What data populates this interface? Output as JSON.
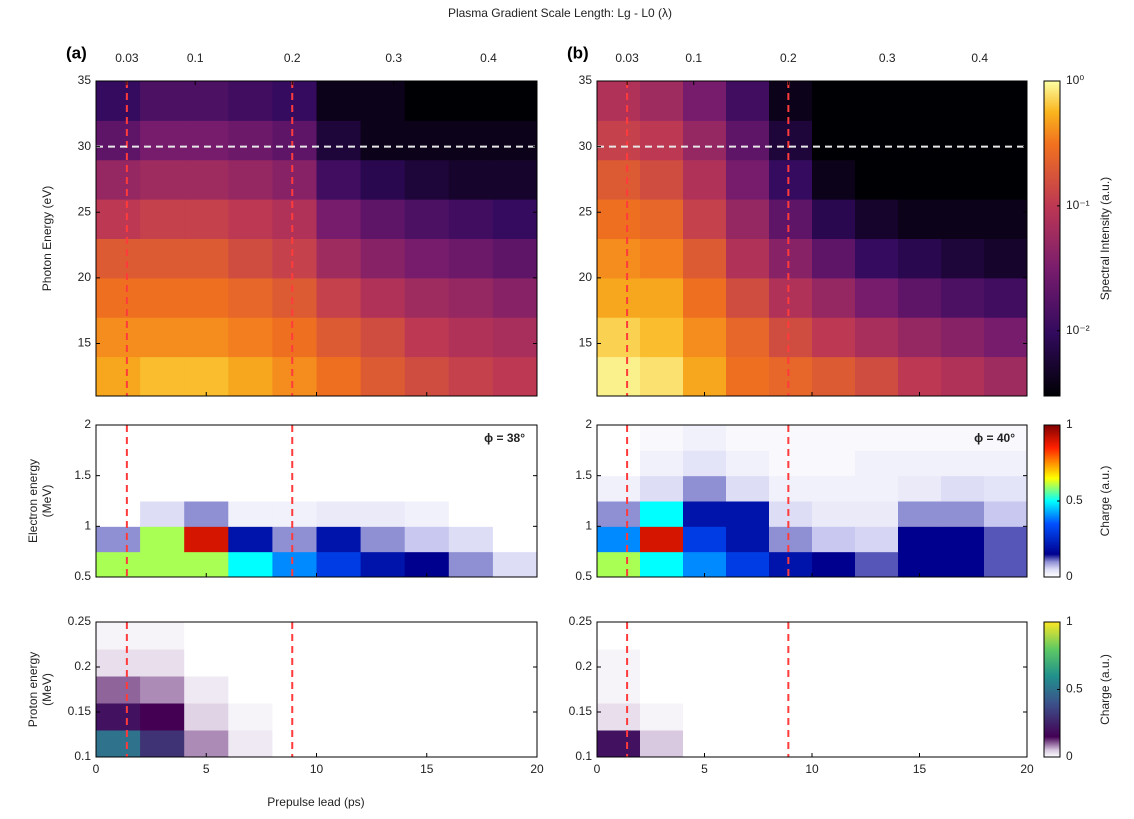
{
  "title": "Plasma Gradient Scale Length: Lg - L0 (λ)",
  "xlabel": "Prepulse lead (ps)",
  "chart_data": [
    {
      "type": "heatmap",
      "panel_label": "(a)",
      "ylabel": [
        "Photon Energy (eV)"
      ],
      "xbins": [
        0,
        2,
        4,
        6,
        8,
        10,
        12,
        14,
        16,
        18,
        20
      ],
      "ybins": [
        11,
        14,
        17,
        20,
        23,
        26,
        29,
        32,
        35
      ],
      "z": [
        [
          0.5,
          0.6,
          0.6,
          0.5,
          0.4,
          0.3,
          0.2,
          0.15,
          0.12,
          0.1
        ],
        [
          0.4,
          0.4,
          0.4,
          0.35,
          0.3,
          0.2,
          0.15,
          0.1,
          0.08,
          0.07
        ],
        [
          0.3,
          0.3,
          0.3,
          0.25,
          0.2,
          0.12,
          0.08,
          0.06,
          0.05,
          0.04
        ],
        [
          0.2,
          0.2,
          0.2,
          0.15,
          0.12,
          0.06,
          0.04,
          0.03,
          0.025,
          0.02
        ],
        [
          0.1,
          0.12,
          0.12,
          0.1,
          0.08,
          0.03,
          0.02,
          0.015,
          0.012,
          0.01
        ],
        [
          0.05,
          0.06,
          0.06,
          0.05,
          0.04,
          0.012,
          0.008,
          0.006,
          0.005,
          0.005
        ],
        [
          0.02,
          0.03,
          0.03,
          0.025,
          0.02,
          0.006,
          0.004,
          0.004,
          0.004,
          0.004
        ],
        [
          0.01,
          0.015,
          0.015,
          0.012,
          0.01,
          0.004,
          0.004,
          0.003,
          0.003,
          0.003
        ]
      ],
      "colormap": "inferno",
      "colorscale": "log",
      "clim": [
        0.003,
        1
      ],
      "xlim": [
        0,
        20
      ],
      "ylim": [
        11,
        35
      ],
      "xticks": [
        0,
        5,
        10,
        15,
        20
      ],
      "yticks": [
        15,
        20,
        25,
        30,
        35
      ],
      "x2ticks": [
        {
          "value": 1.4,
          "label": "0.03"
        },
        {
          "value": 4.5,
          "label": "0.1"
        },
        {
          "value": 8.9,
          "label": "0.2"
        },
        {
          "value": 13.5,
          "label": "0.3"
        },
        {
          "value": 17.8,
          "label": "0.4"
        }
      ],
      "vlines": [
        1.4,
        8.9
      ],
      "vline_color": "#ff3b3b",
      "hlines": [
        30
      ],
      "hline_color": "#e8e8e8"
    },
    {
      "type": "heatmap",
      "panel_label": "(b)",
      "xbins": [
        0,
        2,
        4,
        6,
        8,
        10,
        12,
        14,
        16,
        18,
        20
      ],
      "ybins": [
        11,
        14,
        17,
        20,
        23,
        26,
        29,
        32,
        35
      ],
      "z": [
        [
          0.9,
          0.8,
          0.5,
          0.3,
          0.25,
          0.2,
          0.15,
          0.1,
          0.08,
          0.06
        ],
        [
          0.7,
          0.6,
          0.4,
          0.25,
          0.15,
          0.1,
          0.07,
          0.05,
          0.04,
          0.03
        ],
        [
          0.5,
          0.5,
          0.3,
          0.15,
          0.08,
          0.05,
          0.03,
          0.02,
          0.015,
          0.012
        ],
        [
          0.4,
          0.35,
          0.2,
          0.08,
          0.04,
          0.02,
          0.01,
          0.008,
          0.006,
          0.005
        ],
        [
          0.3,
          0.25,
          0.12,
          0.05,
          0.02,
          0.008,
          0.005,
          0.004,
          0.004,
          0.004
        ],
        [
          0.2,
          0.15,
          0.08,
          0.03,
          0.01,
          0.004,
          0.003,
          0.003,
          0.003,
          0.003
        ],
        [
          0.12,
          0.1,
          0.05,
          0.02,
          0.006,
          0.003,
          0.003,
          0.003,
          0.003,
          0.003
        ],
        [
          0.08,
          0.06,
          0.03,
          0.012,
          0.004,
          0.003,
          0.003,
          0.003,
          0.003,
          0.003
        ]
      ],
      "colormap": "inferno",
      "colorscale": "log",
      "clim": [
        0.003,
        1
      ],
      "xlim": [
        0,
        20
      ],
      "ylim": [
        11,
        35
      ],
      "xticks": [
        0,
        5,
        10,
        15,
        20
      ],
      "yticks": [
        15,
        20,
        25,
        30,
        35
      ],
      "x2ticks": [
        {
          "value": 1.4,
          "label": "0.03"
        },
        {
          "value": 4.5,
          "label": "0.1"
        },
        {
          "value": 8.9,
          "label": "0.2"
        },
        {
          "value": 13.5,
          "label": "0.3"
        },
        {
          "value": 17.8,
          "label": "0.4"
        }
      ],
      "vlines": [
        1.4,
        8.9
      ],
      "vline_color": "#ff3b3b",
      "hlines": [
        30
      ],
      "hline_color": "#e8e8e8",
      "colorbar": {
        "label": "Spectral Intensity (a.u.)",
        "ticks": [
          {
            "value": 1,
            "label": "10⁰"
          },
          {
            "value": 0.1,
            "label": "10⁻¹"
          },
          {
            "value": 0.01,
            "label": "10⁻²"
          }
        ]
      }
    },
    {
      "type": "heatmap",
      "ylabel": [
        "Electron energy",
        "(MeV)"
      ],
      "annotation": "ϕ = 38°",
      "xbins": [
        0,
        2,
        4,
        6,
        8,
        10,
        12,
        14,
        16,
        18,
        20
      ],
      "ybins": [
        0.5,
        0.75,
        1,
        1.25,
        1.5,
        1.75,
        2
      ],
      "z": [
        [
          0.6,
          0.6,
          0.6,
          0.5,
          0.4,
          0.3,
          0.2,
          0.15,
          0.1,
          0.05
        ],
        [
          0.1,
          0.6,
          0.9,
          0.2,
          0.1,
          0.2,
          0.1,
          0.08,
          0.05,
          0
        ],
        [
          0,
          0.05,
          0.1,
          0.02,
          0.02,
          0.03,
          0.03,
          0.02,
          0,
          0
        ],
        [
          0,
          0,
          0,
          0,
          0,
          0,
          0,
          0,
          0,
          0
        ],
        [
          0,
          0,
          0,
          0,
          0,
          0,
          0,
          0,
          0,
          0
        ],
        [
          0,
          0,
          0,
          0,
          0,
          0,
          0,
          0,
          0,
          0
        ]
      ],
      "colormap": "jet",
      "colorscale": "linear",
      "clim": [
        0,
        1
      ],
      "xlim": [
        0,
        20
      ],
      "ylim": [
        0.5,
        2
      ],
      "xticks": [
        0,
        5,
        10,
        15,
        20
      ],
      "yticks": [
        0.5,
        1,
        1.5,
        2
      ],
      "vlines": [
        1.4,
        8.9
      ],
      "vline_color": "#ff3b3b"
    },
    {
      "type": "heatmap",
      "annotation": "ϕ = 40°",
      "xbins": [
        0,
        2,
        4,
        6,
        8,
        10,
        12,
        14,
        16,
        18,
        20
      ],
      "ybins": [
        0.5,
        0.75,
        1,
        1.25,
        1.5,
        1.75,
        2
      ],
      "z": [
        [
          0.6,
          0.5,
          0.4,
          0.3,
          0.2,
          0.15,
          0.12,
          0.15,
          0.15,
          0.12
        ],
        [
          0.4,
          0.9,
          0.3,
          0.2,
          0.1,
          0.08,
          0.06,
          0.15,
          0.15,
          0.12
        ],
        [
          0.1,
          0.5,
          0.2,
          0.2,
          0.05,
          0.03,
          0.03,
          0.1,
          0.1,
          0.08
        ],
        [
          0.02,
          0.05,
          0.1,
          0.05,
          0.02,
          0.02,
          0.02,
          0.03,
          0.05,
          0.04
        ],
        [
          0,
          0.02,
          0.04,
          0.02,
          0.01,
          0.01,
          0.02,
          0.02,
          0.02,
          0.02
        ],
        [
          0,
          0.01,
          0.02,
          0.01,
          0.01,
          0.01,
          0.01,
          0.01,
          0.01,
          0.01
        ]
      ],
      "colormap": "jet",
      "colorscale": "linear",
      "clim": [
        0,
        1
      ],
      "xlim": [
        0,
        20
      ],
      "ylim": [
        0.5,
        2
      ],
      "xticks": [
        0,
        5,
        10,
        15,
        20
      ],
      "yticks": [
        0.5,
        1,
        1.5,
        2
      ],
      "vlines": [
        1.4,
        8.9
      ],
      "vline_color": "#ff3b3b",
      "colorbar": {
        "label": "Charge (a.u.)",
        "ticks": [
          0,
          0.5,
          1
        ]
      }
    },
    {
      "type": "heatmap",
      "ylabel": [
        "Proton energy",
        "(MeV)"
      ],
      "xbins": [
        0,
        2,
        4,
        6,
        8,
        10,
        12,
        14,
        16,
        18,
        20
      ],
      "ybins": [
        0.1,
        0.13,
        0.16,
        0.19,
        0.22,
        0.25
      ],
      "z": [
        [
          0.5,
          0.3,
          0.08,
          0.02,
          0,
          0,
          0,
          0,
          0,
          0
        ],
        [
          0.2,
          0.15,
          0.04,
          0.01,
          0,
          0,
          0,
          0,
          0,
          0
        ],
        [
          0.1,
          0.08,
          0.02,
          0,
          0,
          0,
          0,
          0,
          0,
          0
        ],
        [
          0.03,
          0.03,
          0,
          0,
          0,
          0,
          0,
          0,
          0,
          0
        ],
        [
          0.01,
          0.01,
          0,
          0,
          0,
          0,
          0,
          0,
          0,
          0
        ]
      ],
      "colormap": "viridis",
      "colorscale": "linear",
      "clim": [
        0,
        1
      ],
      "xlim": [
        0,
        20
      ],
      "ylim": [
        0.1,
        0.25
      ],
      "xticks": [
        0,
        5,
        10,
        15,
        20
      ],
      "yticks": [
        0.1,
        0.15,
        0.2,
        0.25
      ],
      "vlines": [
        1.4,
        8.9
      ],
      "vline_color": "#ff3b3b"
    },
    {
      "type": "heatmap",
      "xbins": [
        0,
        2,
        4,
        6,
        8,
        10,
        12,
        14,
        16,
        18,
        20
      ],
      "ybins": [
        0.1,
        0.13,
        0.16,
        0.19,
        0.22,
        0.25
      ],
      "z": [
        [
          0.2,
          0.05,
          0,
          0,
          0,
          0,
          0,
          0,
          0,
          0
        ],
        [
          0.03,
          0.01,
          0,
          0,
          0,
          0,
          0,
          0,
          0,
          0
        ],
        [
          0.01,
          0,
          0,
          0,
          0,
          0,
          0,
          0,
          0,
          0
        ],
        [
          0.01,
          0,
          0,
          0,
          0,
          0,
          0,
          0,
          0,
          0
        ],
        [
          0,
          0,
          0,
          0,
          0,
          0,
          0,
          0,
          0,
          0
        ]
      ],
      "colormap": "viridis",
      "colorscale": "linear",
      "clim": [
        0,
        1
      ],
      "xlim": [
        0,
        20
      ],
      "ylim": [
        0.1,
        0.25
      ],
      "xticks": [
        0,
        5,
        10,
        15,
        20
      ],
      "yticks": [
        0.1,
        0.15,
        0.2,
        0.25
      ],
      "vlines": [
        1.4,
        8.9
      ],
      "vline_color": "#ff3b3b",
      "colorbar": {
        "label": "Charge (a.u.)",
        "ticks": [
          0,
          0.5,
          1
        ]
      }
    }
  ]
}
